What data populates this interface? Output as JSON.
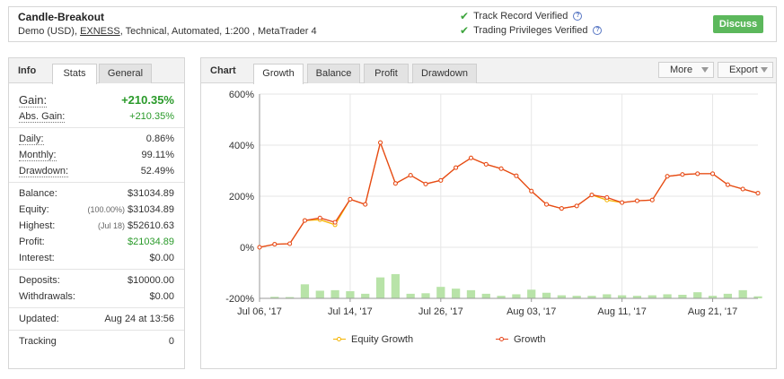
{
  "header": {
    "system_name": "Candle-Breakout",
    "desc_pre": "Demo (USD), ",
    "broker": "EXNESS",
    "desc_post": ", Technical, Automated, 1:200 , MetaTrader 4",
    "verif1": "Track Record Verified",
    "verif2": "Trading Privileges Verified",
    "discuss_label": "Discuss"
  },
  "info": {
    "title": "Info",
    "tabs": [
      "Stats",
      "General"
    ],
    "stats": {
      "gain": {
        "label": "Gain:",
        "value": "+210.35%"
      },
      "abs_gain": {
        "label": "Abs. Gain:",
        "value": "+210.35%"
      },
      "daily": {
        "label": "Daily:",
        "value": "0.86%"
      },
      "monthly": {
        "label": "Monthly:",
        "value": "99.11%"
      },
      "drawdown": {
        "label": "Drawdown:",
        "value": "52.49%"
      },
      "balance": {
        "label": "Balance:",
        "value": "$31034.89"
      },
      "equity": {
        "label": "Equity:",
        "sub": "(100.00%)",
        "value": "$31034.89"
      },
      "highest": {
        "label": "Highest:",
        "sub": "(Jul 18)",
        "value": "$52610.63"
      },
      "profit": {
        "label": "Profit:",
        "value": "$21034.89"
      },
      "interest": {
        "label": "Interest:",
        "value": "$0.00"
      },
      "deposits": {
        "label": "Deposits:",
        "value": "$10000.00"
      },
      "withdrawals": {
        "label": "Withdrawals:",
        "value": "$0.00"
      },
      "updated": {
        "label": "Updated:",
        "value": "Aug 24 at 13:56"
      },
      "tracking": {
        "label": "Tracking",
        "value": "0"
      }
    }
  },
  "chart_panel": {
    "title": "Chart",
    "tabs": [
      "Growth",
      "Balance",
      "Profit",
      "Drawdown"
    ],
    "more_label": "More",
    "export_label": "Export"
  },
  "chart_data": {
    "type": "line",
    "y_ticks": [
      "600%",
      "400%",
      "200%",
      "0%",
      "-200%"
    ],
    "y_tick_values": [
      600,
      400,
      200,
      0,
      -200
    ],
    "ylim": [
      -200,
      600
    ],
    "x_ticks": [
      "Jul 06, '17",
      "Jul 14, '17",
      "Jul 26, '17",
      "Aug 03, '17",
      "Aug 11, '17",
      "Aug 21, '17"
    ],
    "x_tick_index": [
      0,
      6,
      12,
      18,
      24,
      30
    ],
    "series": [
      {
        "name": "Equity Growth",
        "color": "#f5b400",
        "values": [
          0,
          12,
          14,
          105,
          108,
          88,
          188,
          168,
          410,
          250,
          282,
          248,
          262,
          312,
          350,
          325,
          308,
          280,
          220,
          168,
          152,
          162,
          205,
          185,
          175,
          182,
          185,
          278,
          285,
          288,
          288,
          245,
          228,
          212
        ]
      },
      {
        "name": "Growth",
        "color": "#e6461c",
        "values": [
          0,
          12,
          14,
          105,
          115,
          98,
          188,
          168,
          410,
          250,
          282,
          248,
          262,
          312,
          350,
          325,
          308,
          280,
          220,
          168,
          152,
          162,
          205,
          195,
          175,
          182,
          185,
          278,
          285,
          288,
          288,
          245,
          228,
          212
        ]
      }
    ],
    "bars": {
      "color": "#b8e3a8",
      "values": [
        0,
        6,
        5,
        55,
        30,
        32,
        28,
        18,
        82,
        95,
        18,
        20,
        45,
        38,
        32,
        18,
        10,
        16,
        34,
        22,
        12,
        10,
        10,
        16,
        12,
        10,
        12,
        16,
        14,
        24,
        10,
        18,
        32,
        8
      ]
    },
    "grid": true,
    "legend": "bottom"
  }
}
